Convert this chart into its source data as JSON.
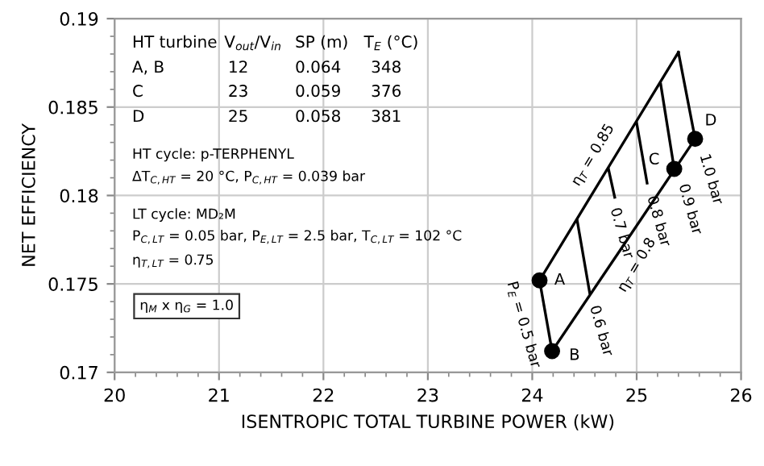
{
  "chart_data": {
    "type": "line",
    "xlabel": "ISENTROPIC TOTAL TURBINE POWER (kW)",
    "ylabel": "NET EFFICIENCY",
    "xlim": [
      20,
      26
    ],
    "xticks": [
      20,
      21,
      22,
      23,
      24,
      25,
      26
    ],
    "ylim": [
      0.17,
      0.19
    ],
    "yticks": [
      0.17,
      0.175,
      0.18,
      0.185,
      0.19
    ],
    "grid": true,
    "series": [
      {
        "name": "η$_{T}$ = 0.85",
        "color": "#000000",
        "x": [
          24.07,
          25.4
        ],
        "values": [
          0.1752,
          0.1881
        ]
      },
      {
        "name": "η$_{T}$ = 0.8",
        "color": "#000000",
        "x": [
          24.19,
          25.56
        ],
        "values": [
          0.1712,
          0.1832
        ]
      },
      {
        "name": "P$_{E}$ = 0.5 bar",
        "color": "#000000",
        "x": [
          24.07,
          24.19
        ],
        "values": [
          0.1752,
          0.1712
        ]
      },
      {
        "name": "0.6 bar",
        "color": "#000000",
        "x": [
          24.43,
          24.55
        ],
        "values": [
          0.1786,
          0.1745
        ]
      },
      {
        "name": "0.7 bar",
        "color": "#000000",
        "x": [
          24.73,
          24.79
        ],
        "values": [
          0.1815,
          0.1799
        ]
      },
      {
        "name": "0.8 bar",
        "color": "#000000",
        "x": [
          25.0,
          25.1
        ],
        "values": [
          0.1841,
          0.1807
        ]
      },
      {
        "name": "0.9 bar",
        "color": "#000000",
        "x": [
          25.23,
          25.36
        ],
        "values": [
          0.1863,
          0.1815
        ]
      },
      {
        "name": "1.0 bar",
        "color": "#000000",
        "x": [
          25.4,
          25.56
        ],
        "values": [
          0.1881,
          0.1832
        ]
      },
      {
        "name": "A",
        "type": "scatter",
        "color": "#000000",
        "marker": "circle",
        "x": [
          24.07
        ],
        "values": [
          0.1752
        ]
      },
      {
        "name": "B",
        "type": "scatter",
        "color": "#000000",
        "marker": "circle",
        "x": [
          24.19
        ],
        "values": [
          0.1712
        ]
      },
      {
        "name": "C",
        "type": "scatter",
        "color": "#000000",
        "marker": "circle",
        "x": [
          25.36
        ],
        "values": [
          0.1815
        ]
      },
      {
        "name": "D",
        "type": "scatter",
        "color": "#000000",
        "marker": "circle",
        "x": [
          25.56
        ],
        "values": [
          0.1832
        ]
      }
    ],
    "annotations": [
      "HT turbine",
      "V$_{out}$/V$_{in}$",
      "SP (m)",
      "T$_{E}$ (°C)",
      "A, B",
      "12",
      "0.064",
      "348",
      "C",
      "23",
      "0.059",
      "376",
      "D",
      "25",
      "0.058",
      "381",
      "HT cycle: p-TERPHENYL",
      "ΔT$_{C,HT}$ = 20 °C, P$_{C,HT}$ = 0.039 bar",
      "LT cycle: MD₂M",
      "P$_{C,LT}$ = 0.05 bar, P$_{E,LT}$ = 2.5 bar, T$_{C,LT}$ = 102 °C",
      "η$_{T,LT}$ = 0.75",
      "η$_{M}$ x η$_{G}$ = 1.0"
    ]
  }
}
